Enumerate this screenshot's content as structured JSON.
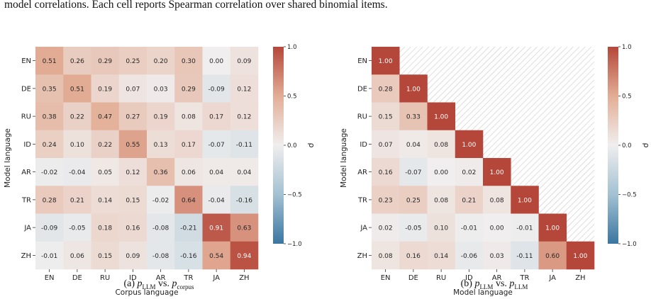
{
  "caption_line": "model correlations. Each cell reports Spearman correlation over shared binomial items.",
  "chart_data": [
    {
      "type": "heatmap",
      "subcaption": {
        "prefix": "(a) ",
        "a_var": "p",
        "a_sub": "LLM",
        "mid": " vs. ",
        "b_var": "p",
        "b_sub": "corpus"
      },
      "xlabel": "Corpus language",
      "ylabel": "Model language",
      "x_categories": [
        "EN",
        "DE",
        "RU",
        "ID",
        "AR",
        "TR",
        "JA",
        "ZH"
      ],
      "y_categories": [
        "EN",
        "DE",
        "RU",
        "ID",
        "AR",
        "TR",
        "JA",
        "ZH"
      ],
      "values": [
        [
          0.51,
          0.26,
          0.29,
          0.25,
          0.2,
          0.3,
          0.0,
          0.09
        ],
        [
          0.35,
          0.51,
          0.19,
          0.07,
          0.03,
          0.29,
          -0.09,
          0.12
        ],
        [
          0.38,
          0.22,
          0.47,
          0.27,
          0.19,
          0.08,
          0.17,
          0.12
        ],
        [
          0.24,
          0.1,
          0.22,
          0.55,
          0.13,
          0.17,
          -0.07,
          -0.11
        ],
        [
          -0.02,
          -0.04,
          0.05,
          0.12,
          0.36,
          0.06,
          0.04,
          0.04
        ],
        [
          0.28,
          0.21,
          0.14,
          0.15,
          -0.02,
          0.64,
          -0.04,
          -0.16
        ],
        [
          -0.09,
          -0.05,
          0.18,
          0.16,
          -0.08,
          -0.21,
          0.91,
          0.63
        ],
        [
          -0.01,
          0.06,
          0.15,
          0.09,
          -0.08,
          -0.16,
          0.54,
          0.94
        ]
      ],
      "colorbar": {
        "label": "ρ",
        "range": [
          -1.0,
          1.0
        ],
        "ticks": [
          "1.0",
          "0.5",
          "0.0",
          "−0.5",
          "−1.0"
        ]
      },
      "masked_upper": false
    },
    {
      "type": "heatmap",
      "subcaption": {
        "prefix": "(b) ",
        "a_var": "p",
        "a_sub": "LLM",
        "mid": " vs. ",
        "b_var": "p",
        "b_sub": "LLM"
      },
      "xlabel": "Model language",
      "ylabel": "Model language",
      "x_categories": [
        "EN",
        "DE",
        "RU",
        "ID",
        "AR",
        "TR",
        "JA",
        "ZH"
      ],
      "y_categories": [
        "EN",
        "DE",
        "RU",
        "ID",
        "AR",
        "TR",
        "JA",
        "ZH"
      ],
      "values": [
        [
          1.0,
          null,
          null,
          null,
          null,
          null,
          null,
          null
        ],
        [
          0.28,
          1.0,
          null,
          null,
          null,
          null,
          null,
          null
        ],
        [
          0.15,
          0.33,
          1.0,
          null,
          null,
          null,
          null,
          null
        ],
        [
          0.07,
          0.04,
          0.08,
          1.0,
          null,
          null,
          null,
          null
        ],
        [
          0.16,
          -0.07,
          0.0,
          0.02,
          1.0,
          null,
          null,
          null
        ],
        [
          0.23,
          0.25,
          0.08,
          0.21,
          0.08,
          1.0,
          null,
          null
        ],
        [
          0.02,
          -0.05,
          0.1,
          -0.01,
          0.0,
          -0.01,
          1.0,
          null
        ],
        [
          0.08,
          0.16,
          0.14,
          -0.06,
          0.03,
          -0.11,
          0.6,
          1.0
        ]
      ],
      "colorbar": {
        "label": "ρ",
        "range": [
          -1.0,
          1.0
        ],
        "ticks": [
          "1.0",
          "0.5",
          "0.0",
          "−0.5",
          "−1.0"
        ]
      },
      "masked_upper": true
    }
  ]
}
